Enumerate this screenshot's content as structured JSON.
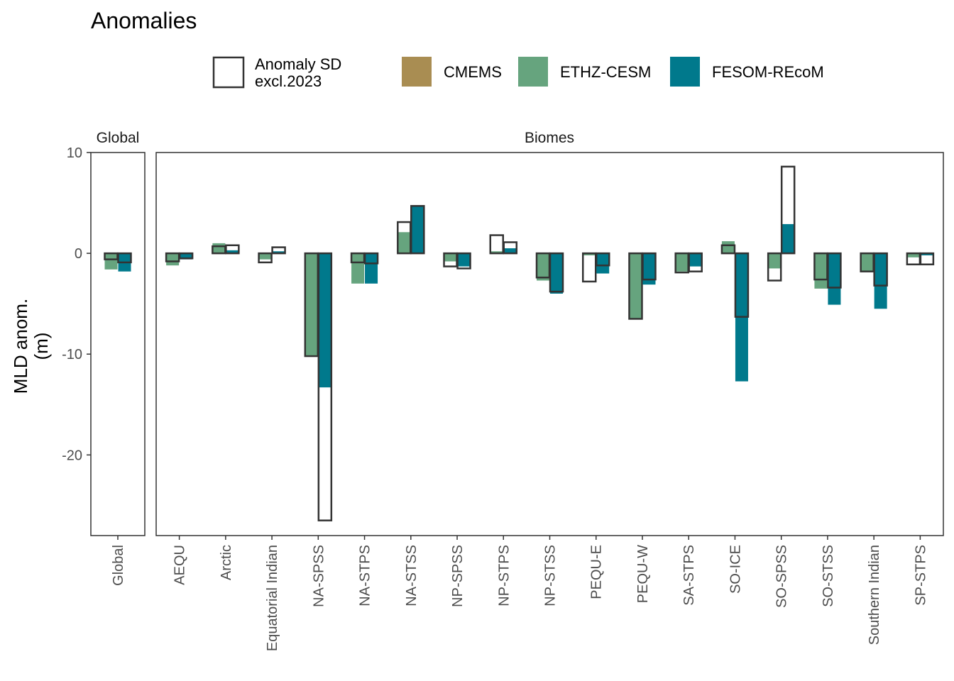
{
  "chart_data": {
    "type": "bar",
    "title": "Anomalies",
    "ylabel": [
      "MLD anom.",
      "(m)"
    ],
    "ylim": [
      -28,
      10
    ],
    "yticks": [
      10,
      0,
      -10,
      -20
    ],
    "legend": {
      "position": "top",
      "sd_label": [
        "Anomaly SD",
        "excl.2023"
      ],
      "products": [
        {
          "name": "CMEMS",
          "color": "#a98d52"
        },
        {
          "name": "ETHZ-CESM",
          "color": "#66a47e"
        },
        {
          "name": "FESOM-REcoM",
          "color": "#00798c"
        }
      ]
    },
    "panels": [
      {
        "name": "Global",
        "categories": [
          "Global"
        ]
      },
      {
        "name": "Biomes",
        "categories": [
          "AEQU",
          "Arctic",
          "Equatorial Indian",
          "NA-SPSS",
          "NA-STPS",
          "NA-STSS",
          "NP-SPSS",
          "NP-STPS",
          "NP-STSS",
          "PEQU-E",
          "PEQU-W",
          "SA-STPS",
          "SO-ICE",
          "SO-SPSS",
          "SO-STSS",
          "Southern Indian",
          "SP-STPS"
        ]
      }
    ],
    "series": [
      {
        "name": "ETHZ-CESM",
        "anomaly": {
          "Global": -1.6,
          "AEQU": -1.2,
          "Arctic": 1.0,
          "Equatorial Indian": -0.6,
          "NA-SPSS": -10.2,
          "NA-STPS": -3.0,
          "NA-STSS": 2.1,
          "NP-SPSS": -0.8,
          "NP-STPS": 0.2,
          "NP-STSS": -2.7,
          "PEQU-E": -0.2,
          "PEQU-W": -6.5,
          "SA-STPS": -1.8,
          "SO-ICE": 1.2,
          "SO-SPSS": -1.5,
          "SO-STSS": -3.5,
          "Southern Indian": -1.8,
          "SP-STPS": -0.4
        },
        "sd": {
          "Global": 0.6,
          "AEQU": 0.8,
          "Arctic": 0.7,
          "Equatorial Indian": 0.9,
          "NA-SPSS": 10.2,
          "NA-STPS": 0.9,
          "NA-STSS": 3.1,
          "NP-SPSS": 1.3,
          "NP-STPS": 1.8,
          "NP-STSS": 2.4,
          "PEQU-E": 2.8,
          "PEQU-W": 6.5,
          "SA-STPS": 1.9,
          "SO-ICE": 0.8,
          "SO-SPSS": 2.7,
          "SO-STSS": 2.6,
          "Southern Indian": 1.8,
          "SP-STPS": 1.1
        }
      },
      {
        "name": "FESOM-REcoM",
        "anomaly": {
          "Global": -1.8,
          "AEQU": -0.6,
          "Arctic": 0.3,
          "Equatorial Indian": 0.2,
          "NA-SPSS": -13.3,
          "NA-STPS": -3.0,
          "NA-STSS": 4.7,
          "NP-SPSS": -1.3,
          "NP-STPS": 0.5,
          "NP-STSS": -4.0,
          "PEQU-E": -2.0,
          "PEQU-W": -3.1,
          "SA-STPS": -1.3,
          "SO-ICE": -12.7,
          "SO-SPSS": 2.9,
          "SO-STSS": -5.1,
          "Southern Indian": -5.5,
          "SP-STPS": -0.2
        },
        "sd": {
          "Global": 0.9,
          "AEQU": 0.5,
          "Arctic": 0.8,
          "Equatorial Indian": 0.6,
          "NA-SPSS": 26.5,
          "NA-STPS": 1.0,
          "NA-STSS": 4.7,
          "NP-SPSS": 1.5,
          "NP-STPS": 1.1,
          "NP-STSS": 3.8,
          "PEQU-E": 1.2,
          "PEQU-W": 2.6,
          "SA-STPS": 1.8,
          "SO-ICE": 6.3,
          "SO-SPSS": 8.6,
          "SO-STSS": 3.4,
          "Southern Indian": 3.2,
          "SP-STPS": 1.1
        }
      }
    ]
  }
}
